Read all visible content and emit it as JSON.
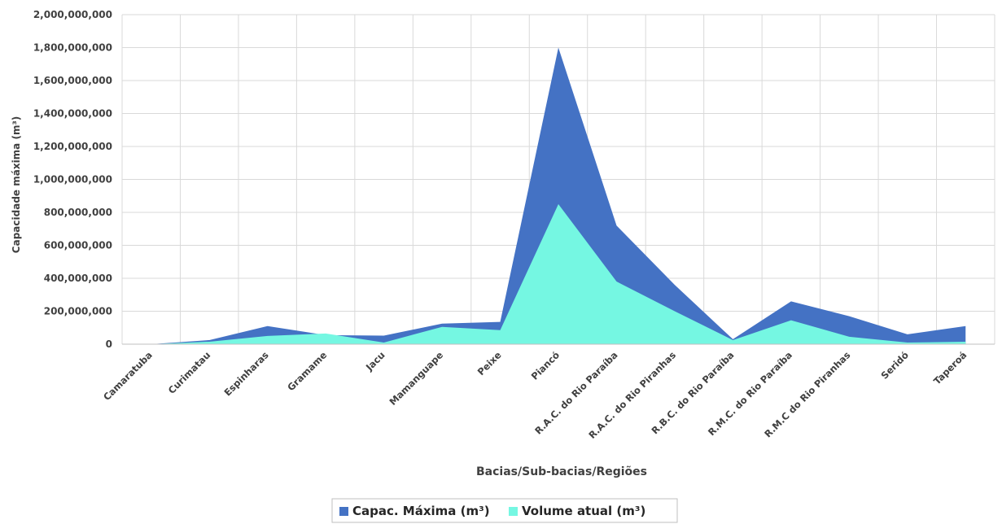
{
  "chart_data": {
    "type": "area",
    "title": "",
    "xlabel": "Bacias/Sub-bacias/Regiões",
    "ylabel": "Capacidade máxima (m³)",
    "ylim": [
      0,
      2000000000
    ],
    "yticks": [
      0,
      200000000,
      400000000,
      600000000,
      800000000,
      1000000000,
      1200000000,
      1400000000,
      1600000000,
      1800000000,
      2000000000
    ],
    "ytick_labels": [
      "0",
      "200,000,000",
      "400,000,000",
      "600,000,000",
      "800,000,000",
      "1,000,000,000",
      "1,200,000,000",
      "1,400,000,000",
      "1,600,000,000",
      "1,800,000,000",
      "2,000,000,000"
    ],
    "grid": true,
    "legend_position": "bottom",
    "categories": [
      "Camaratuba",
      "Curimatau",
      "Espinharas",
      "Gramame",
      "Jacu",
      "Mamanguape",
      "Peixe",
      "Piancó",
      "R.A.C. do Rio Paraíba",
      "R.A.C. do Rio Piranhas",
      "R.B.C. do Rio Paraíba",
      "R.M.C. do Rio Paraíba",
      "R.M.C do Rio Piranhas",
      "Seridó",
      "Taperoá"
    ],
    "series": [
      {
        "name": "Capac. Máxima (m³)",
        "color": "#4472C4",
        "values": [
          0,
          25000000,
          110000000,
          55000000,
          52000000,
          125000000,
          135000000,
          1800000000,
          720000000,
          360000000,
          30000000,
          260000000,
          170000000,
          60000000,
          110000000
        ]
      },
      {
        "name": "Volume atual (m³)",
        "color": "#75F7E2",
        "values": [
          0,
          15000000,
          50000000,
          65000000,
          10000000,
          105000000,
          85000000,
          850000000,
          380000000,
          200000000,
          25000000,
          145000000,
          45000000,
          10000000,
          15000000
        ]
      }
    ]
  }
}
